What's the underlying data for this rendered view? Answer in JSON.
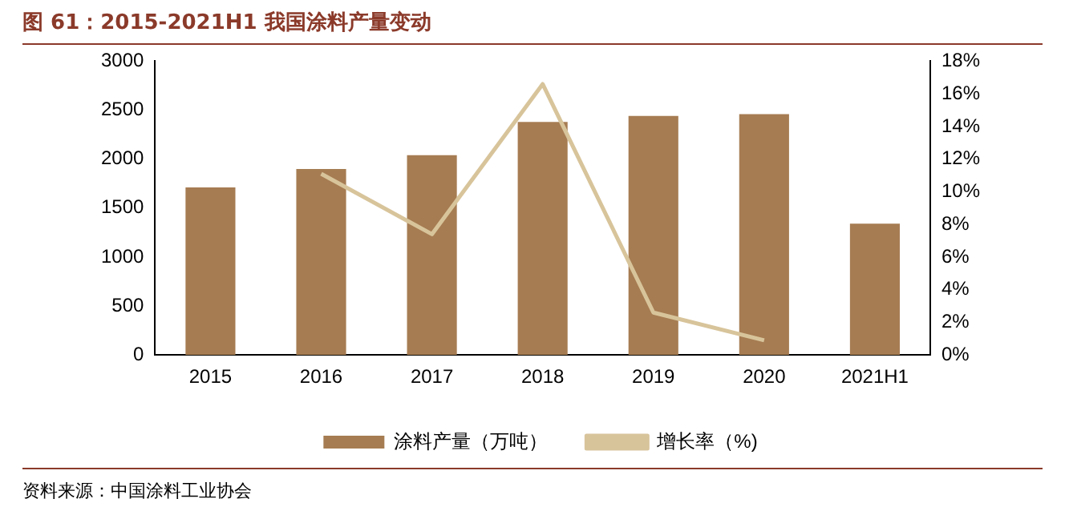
{
  "chart_data": {
    "type": "bar",
    "title": "图 61：2015-2021H1 我国涂料产量变动",
    "categories": [
      "2015",
      "2016",
      "2017",
      "2018",
      "2019",
      "2020",
      "2021H1"
    ],
    "series": [
      {
        "name": "涂料产量（万吨）",
        "color": "#a67c52",
        "values": [
          1710,
          1900,
          2040,
          2380,
          2440,
          2460,
          1340
        ]
      },
      {
        "name": "增长率（%)",
        "type": "line",
        "axis": "y2",
        "color": "#d8c49b",
        "values": [
          null,
          11.1,
          7.4,
          16.6,
          2.6,
          0.9,
          null
        ]
      }
    ],
    "ylim": [
      0,
      3000
    ],
    "yticks": [
      0,
      500,
      1000,
      1500,
      2000,
      2500,
      3000
    ],
    "y2lim": [
      0,
      18
    ],
    "y2ticks": [
      {
        "value": 0,
        "label": "0%"
      },
      {
        "value": 2,
        "label": "2%"
      },
      {
        "value": 4,
        "label": "4%"
      },
      {
        "value": 6,
        "label": "6%"
      },
      {
        "value": 8,
        "label": "8%"
      },
      {
        "value": 10,
        "label": "10%"
      },
      {
        "value": 12,
        "label": "12%"
      },
      {
        "value": 14,
        "label": "14%"
      },
      {
        "value": 16,
        "label": "16%"
      },
      {
        "value": 18,
        "label": "18%"
      }
    ],
    "grid": false,
    "legend": "bottom",
    "marker": "none",
    "annotations": [
      "资料来源：中国涂料工业协会"
    ]
  }
}
